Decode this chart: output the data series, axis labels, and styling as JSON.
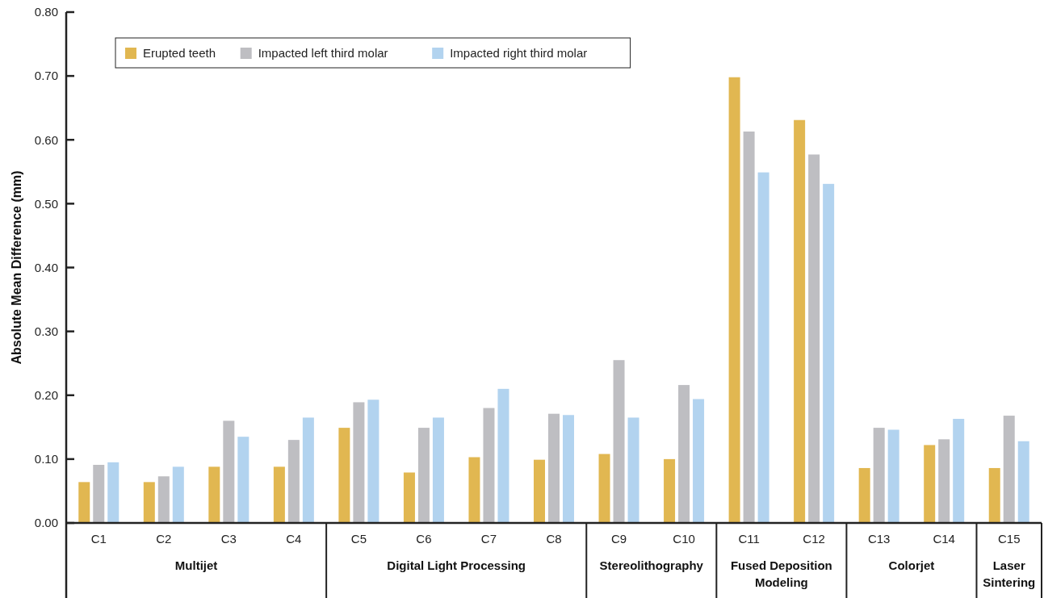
{
  "chart_data": {
    "type": "bar",
    "ylabel": "Absolute Mean Difference (mm)",
    "categories": [
      "C1",
      "C2",
      "C3",
      "C4",
      "C5",
      "C6",
      "C7",
      "C8",
      "C9",
      "C10",
      "C11",
      "C12",
      "C13",
      "C14",
      "C15"
    ],
    "series": [
      {
        "name": "Erupted teeth",
        "color": "#e1b751",
        "values": [
          0.064,
          0.064,
          0.088,
          0.088,
          0.149,
          0.079,
          0.103,
          0.099,
          0.108,
          0.1,
          0.698,
          0.631,
          0.086,
          0.122,
          0.086
        ]
      },
      {
        "name": "Impacted left third molar",
        "color": "#bebec2",
        "values": [
          0.091,
          0.073,
          0.16,
          0.13,
          0.189,
          0.149,
          0.18,
          0.171,
          0.255,
          0.216,
          0.613,
          0.577,
          0.149,
          0.131,
          0.168
        ]
      },
      {
        "name": "Impacted right third molar",
        "color": "#b2d3ef",
        "values": [
          0.095,
          0.088,
          0.135,
          0.165,
          0.193,
          0.165,
          0.21,
          0.169,
          0.165,
          0.194,
          0.549,
          0.531,
          0.146,
          0.163,
          0.128
        ]
      }
    ],
    "ylim": [
      0,
      0.8
    ],
    "yticks": [
      {
        "value": 0,
        "label": "0.00"
      },
      {
        "value": 0.1,
        "label": "0.10"
      },
      {
        "value": 0.2,
        "label": "0.20"
      },
      {
        "value": 0.3,
        "label": "0.30"
      },
      {
        "value": 0.4,
        "label": "0.40"
      },
      {
        "value": 0.5,
        "label": "0.50"
      },
      {
        "value": 0.6,
        "label": "0.60"
      },
      {
        "value": 0.7,
        "label": "0.70"
      },
      {
        "value": 0.8,
        "label": "0.80"
      }
    ],
    "annotations": [
      "Multijet",
      "Digital Light Processing",
      "Stereolithography",
      "Fused Deposition Modeling",
      "Colorjet",
      "Laser Sintering"
    ],
    "legend": "top left",
    "grid": false
  }
}
